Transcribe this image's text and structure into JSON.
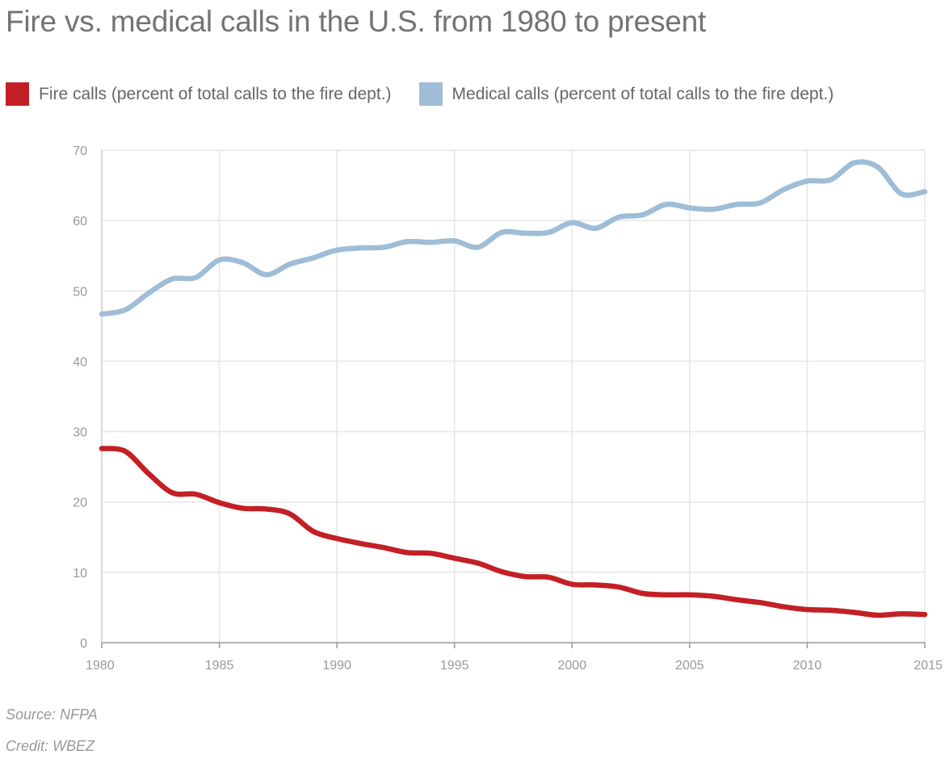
{
  "chart_data": {
    "type": "line",
    "title": "Fire vs. medical calls in the U.S. from 1980 to present",
    "xlabel": "",
    "ylabel": "",
    "xlim": [
      1980,
      2015
    ],
    "ylim": [
      0,
      70
    ],
    "x_ticks": [
      "1980",
      "1985",
      "1990",
      "1995",
      "2000",
      "2005",
      "2010",
      "2015"
    ],
    "y_ticks": [
      "0",
      "10",
      "20",
      "30",
      "40",
      "50",
      "60",
      "70"
    ],
    "grid": true,
    "legend_position": "top-left",
    "x": [
      1980,
      1981,
      1982,
      1983,
      1984,
      1985,
      1986,
      1987,
      1988,
      1989,
      1990,
      1991,
      1992,
      1993,
      1994,
      1995,
      1996,
      1997,
      1998,
      1999,
      2000,
      2001,
      2002,
      2003,
      2004,
      2005,
      2006,
      2007,
      2008,
      2009,
      2010,
      2011,
      2012,
      2013,
      2014,
      2015
    ],
    "series": [
      {
        "name": "Fire calls (percent of total calls to the fire dept.)",
        "color": "#c32026",
        "values": [
          27.6,
          27.2,
          24.0,
          21.3,
          21.1,
          19.9,
          19.1,
          19.0,
          18.3,
          15.8,
          14.8,
          14.1,
          13.5,
          12.8,
          12.7,
          12.0,
          11.3,
          10.1,
          9.4,
          9.3,
          8.3,
          8.2,
          7.9,
          7.0,
          6.8,
          6.8,
          6.6,
          6.1,
          5.7,
          5.1,
          4.7,
          4.6,
          4.3,
          3.9,
          4.1,
          4.0
        ]
      },
      {
        "name": "Medical calls (percent of total calls to the fire dept.)",
        "color": "#9fbdd6",
        "values": [
          46.7,
          47.3,
          49.7,
          51.7,
          51.9,
          54.4,
          54.0,
          52.3,
          53.8,
          54.7,
          55.8,
          56.1,
          56.2,
          57.0,
          56.9,
          57.1,
          56.2,
          58.3,
          58.2,
          58.3,
          59.7,
          58.9,
          60.5,
          60.8,
          62.3,
          61.8,
          61.6,
          62.3,
          62.5,
          64.4,
          65.6,
          65.8,
          68.2,
          67.6,
          63.8,
          64.1
        ]
      }
    ]
  },
  "footer": {
    "source": "Source: NFPA",
    "credit": "Credit: WBEZ"
  }
}
